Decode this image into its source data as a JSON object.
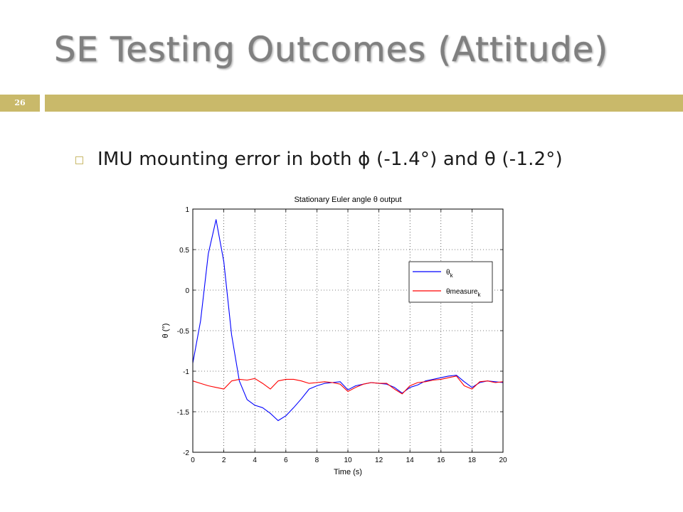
{
  "slide": {
    "title": "SE Testing Outcomes (Attitude)",
    "number": "26",
    "bullet": "IMU mounting error in both ϕ (-1.4°) and θ (-1.2°)"
  },
  "colors": {
    "accent": "#c9b96a",
    "title_gray": "#808080",
    "series_theta": "#0000ff",
    "series_measure": "#ff0000"
  },
  "chart_data": {
    "type": "line",
    "title": "Stationary Euler angle θ output",
    "xlabel": "Time (s)",
    "ylabel": "θ (°)",
    "xlim": [
      0,
      20
    ],
    "ylim": [
      -2,
      1
    ],
    "xticks": [
      "0",
      "2",
      "4",
      "6",
      "8",
      "10",
      "12",
      "14",
      "16",
      "18",
      "20"
    ],
    "yticks": [
      "1",
      "0.5",
      "0",
      "-0.5",
      "-1",
      "-1.5",
      "-2"
    ],
    "grid": true,
    "legend_position": "right",
    "legend": [
      {
        "label": "θ",
        "sub": "k"
      },
      {
        "label": "θmeasure",
        "sub": "k"
      }
    ],
    "series": [
      {
        "label": "θ",
        "sub": "k",
        "x": [
          0,
          0.5,
          1.0,
          1.5,
          2.0,
          2.5,
          3.0,
          3.5,
          4.0,
          4.5,
          5.0,
          5.5,
          6.0,
          6.5,
          7.0,
          7.5,
          8.0,
          8.5,
          9.0,
          9.5,
          10.0,
          10.5,
          11.0,
          11.5,
          12.0,
          12.5,
          13.0,
          13.5,
          14.0,
          14.5,
          15.0,
          15.5,
          16.0,
          16.5,
          17.0,
          17.5,
          18.0,
          18.5,
          19.0,
          19.5,
          20.0
        ],
        "y": [
          -0.9,
          -0.38,
          0.45,
          0.87,
          0.35,
          -0.55,
          -1.12,
          -1.35,
          -1.42,
          -1.45,
          -1.52,
          -1.61,
          -1.55,
          -1.45,
          -1.34,
          -1.22,
          -1.18,
          -1.15,
          -1.14,
          -1.13,
          -1.23,
          -1.18,
          -1.16,
          -1.14,
          -1.15,
          -1.16,
          -1.2,
          -1.27,
          -1.2,
          -1.17,
          -1.12,
          -1.1,
          -1.08,
          -1.06,
          -1.05,
          -1.13,
          -1.2,
          -1.14,
          -1.12,
          -1.13,
          -1.14
        ]
      },
      {
        "label": "θmeasure",
        "sub": "k",
        "x": [
          0,
          0.5,
          1.0,
          1.5,
          2.0,
          2.5,
          3.0,
          3.5,
          4.0,
          4.5,
          5.0,
          5.5,
          6.0,
          6.5,
          7.0,
          7.5,
          8.0,
          8.5,
          9.0,
          9.5,
          10.0,
          10.5,
          11.0,
          11.5,
          12.0,
          12.5,
          13.0,
          13.5,
          14.0,
          14.5,
          15.0,
          15.5,
          16.0,
          16.5,
          17.0,
          17.5,
          18.0,
          18.5,
          19.0,
          19.5,
          20.0
        ],
        "y": [
          -1.12,
          -1.15,
          -1.18,
          -1.2,
          -1.22,
          -1.12,
          -1.1,
          -1.11,
          -1.09,
          -1.15,
          -1.22,
          -1.12,
          -1.1,
          -1.1,
          -1.12,
          -1.15,
          -1.14,
          -1.13,
          -1.14,
          -1.16,
          -1.25,
          -1.2,
          -1.16,
          -1.14,
          -1.15,
          -1.15,
          -1.22,
          -1.28,
          -1.18,
          -1.14,
          -1.13,
          -1.11,
          -1.1,
          -1.08,
          -1.06,
          -1.18,
          -1.22,
          -1.13,
          -1.12,
          -1.14,
          -1.13
        ]
      }
    ]
  }
}
